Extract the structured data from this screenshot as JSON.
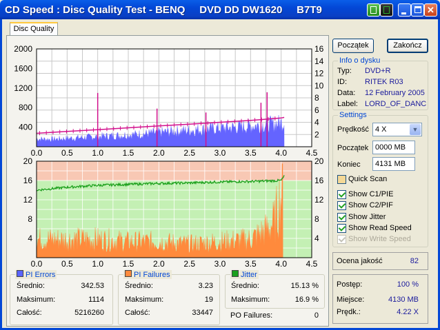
{
  "window": {
    "title": "CD Speed : Disc Quality Test - BENQ     DVD DD DW1620     B7T9",
    "accent": "#0347d6"
  },
  "tabs": [
    {
      "label": "Disc Quality"
    }
  ],
  "buttons": {
    "start": "Początek",
    "stop": "Zakończ"
  },
  "disc_info": {
    "title": "Info o dysku",
    "type_label": "Typ:",
    "type": "DVD+R",
    "id_label": "ID:",
    "id": "RITEK R03",
    "date_label": "Data:",
    "date": "12 February 2005",
    "label_label": "Label:",
    "label": "LORD_OF_DANCE"
  },
  "settings": {
    "title": "Settings",
    "speed_label": "Prędkość",
    "speed": "4 X",
    "start_label": "Początek",
    "start": "0000 MB",
    "end_label": "Koniec",
    "end": "4131 MB",
    "quick_scan": "Quick Scan",
    "show_c1": "Show C1/PIE",
    "show_c2": "Show C2/PIF",
    "show_jitter": "Show Jitter",
    "show_read": "Show Read Speed",
    "show_write": "Show Write Speed"
  },
  "quality": {
    "label": "Ocena jakość",
    "value": "82"
  },
  "progress": {
    "progress_label": "Postęp:",
    "progress": "100 %",
    "progress_fraction": 1.0,
    "position_label": "Miejsce:",
    "position": "4130 MB",
    "speed_label": "Prędk.:",
    "speed": "4.22 X"
  },
  "stats": {
    "pi_errors": {
      "title": "PI Errors",
      "color": "#5a64ff",
      "avg_label": "Średnio:",
      "avg": "342.53",
      "max_label": "Maksimum:",
      "max": "1114",
      "total_label": "Całość:",
      "total": "5216260"
    },
    "pi_failures": {
      "title": "PI Failures",
      "color": "#ff8a3c",
      "avg_label": "Średnio:",
      "avg": "3.23",
      "max_label": "Maksimum:",
      "max": "19",
      "total_label": "Całość:",
      "total": "33447"
    },
    "jitter": {
      "title": "Jitter",
      "color": "#1ca01c",
      "avg_label": "Średnio:",
      "avg": "15.13 %",
      "max_label": "Maksimum:",
      "max": "16.9 %"
    },
    "po_failures": {
      "label": "PO Failures:",
      "value": "0"
    }
  },
  "chart_data": [
    {
      "type": "area",
      "x_ticks": [
        "0.0",
        "0.5",
        "1.0",
        "1.5",
        "2.0",
        "2.5",
        "3.0",
        "3.5",
        "4.0",
        "4.5"
      ],
      "xlim": [
        0,
        4.5
      ],
      "ylim_left": [
        0,
        2000
      ],
      "y_ticks_left": [
        "2000",
        "1600",
        "1200",
        "800",
        "400"
      ],
      "ylim_right": [
        0,
        16
      ],
      "y_ticks_right": [
        "16",
        "14",
        "12",
        "10",
        "8",
        "6",
        "4",
        "2"
      ],
      "grid": true,
      "series": [
        {
          "color": "#6464ff",
          "x": [
            0.0,
            0.25,
            0.5,
            0.75,
            1.0,
            1.25,
            1.5,
            1.75,
            2.0,
            2.25,
            2.5,
            2.75,
            3.0,
            3.25,
            3.5,
            3.75,
            4.0,
            4.05
          ],
          "values": [
            180,
            170,
            190,
            210,
            230,
            250,
            270,
            290,
            320,
            350,
            370,
            400,
            420,
            440,
            470,
            500,
            540,
            560
          ],
          "spikes": [
            {
              "x": 1.0,
              "value": 1100
            },
            {
              "x": 1.97,
              "value": 780
            },
            {
              "x": 2.77,
              "value": 700
            },
            {
              "x": 3.67,
              "value": 900
            },
            {
              "x": 3.77,
              "value": 1114
            }
          ]
        },
        {
          "color": "#d20f8c",
          "x": [
            0.0,
            0.5,
            1.0,
            1.5,
            2.0,
            2.5,
            3.0,
            3.5,
            4.0,
            4.05
          ],
          "values": [
            2.2,
            2.5,
            2.8,
            3.1,
            3.4,
            3.7,
            4.0,
            4.3,
            4.7,
            4.8
          ]
        }
      ]
    },
    {
      "type": "area",
      "x_ticks": [
        "0.0",
        "0.5",
        "1.0",
        "1.5",
        "2.0",
        "2.5",
        "3.0",
        "3.5",
        "4.0",
        "4.5"
      ],
      "xlim": [
        0,
        4.5
      ],
      "ylim_left": [
        0,
        20
      ],
      "y_ticks_left": [
        "20",
        "16",
        "12",
        "8",
        "4"
      ],
      "ylim_right": [
        0,
        20
      ],
      "y_ticks_right": [
        "20",
        "16",
        "12",
        "8",
        "4"
      ],
      "grid": true,
      "series": [
        {
          "color": "#ff8a3c",
          "x": [
            0.0,
            0.5,
            1.0,
            1.5,
            2.0,
            2.5,
            3.0,
            3.5,
            3.75,
            3.9,
            4.0,
            4.03
          ],
          "values": [
            4,
            4,
            4,
            3.5,
            3.5,
            3,
            3.5,
            4,
            6,
            8,
            14,
            19
          ]
        },
        {
          "color": "#1ca01c",
          "x": [
            0.0,
            0.5,
            1.0,
            1.5,
            2.0,
            2.5,
            3.0,
            3.5,
            4.0,
            4.05
          ],
          "values": [
            14.0,
            14.6,
            15.0,
            15.2,
            15.4,
            15.5,
            15.7,
            15.8,
            16.0,
            16.9
          ]
        }
      ]
    }
  ]
}
